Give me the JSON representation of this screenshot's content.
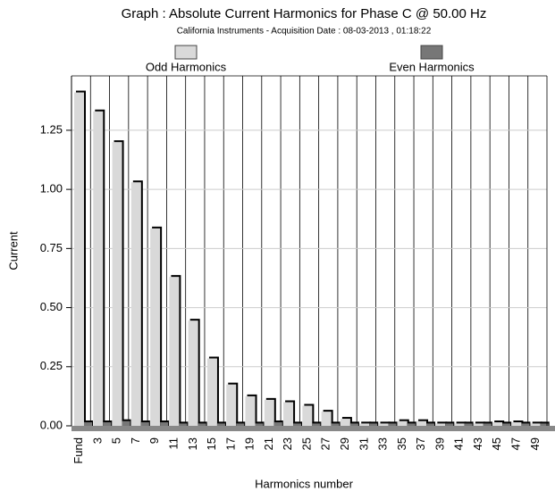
{
  "chart_data": {
    "type": "bar",
    "title": "Graph : Absolute Current Harmonics for Phase C @ 50.00 Hz",
    "subtitle": "California Instruments - Acquisition Date : 08-03-2013 , 01:18:22",
    "x_label": "Harmonics number",
    "y_label": "Current",
    "categories": [
      "Fund",
      "3",
      "5",
      "7",
      "9",
      "11",
      "13",
      "15",
      "17",
      "19",
      "21",
      "23",
      "25",
      "27",
      "29",
      "31",
      "33",
      "35",
      "37",
      "39",
      "41",
      "43",
      "45",
      "47",
      "49"
    ],
    "series": [
      {
        "name": "Odd Harmonics",
        "color": "#d9d9d9",
        "values": [
          1.41,
          1.33,
          1.2,
          1.03,
          0.835,
          0.63,
          0.445,
          0.285,
          0.175,
          0.125,
          0.11,
          0.1,
          0.085,
          0.06,
          0.03,
          0.01,
          0.01,
          0.02,
          0.02,
          0.01,
          0.01,
          0.01,
          0.015,
          0.015,
          0.01
        ]
      },
      {
        "name": "Even Harmonics",
        "color": "#777777",
        "values": [
          0.015,
          0.015,
          0.02,
          0.015,
          0.015,
          0.01,
          0.01,
          0.01,
          0.01,
          0.01,
          0.015,
          0.01,
          0.01,
          0.01,
          0.01,
          0.01,
          0.01,
          0.01,
          0.01,
          0.01,
          0.01,
          0.01,
          0.01,
          0.01,
          0.01
        ]
      }
    ],
    "ylim": [
      0,
      1.48
    ],
    "yticks": [
      {
        "value": 0,
        "label": "0.00"
      },
      0.25,
      {
        "value": 0.5,
        "label": "0.50"
      },
      0.75,
      {
        "value": 1,
        "label": "1.00"
      },
      1.25
    ],
    "grid": true
  }
}
